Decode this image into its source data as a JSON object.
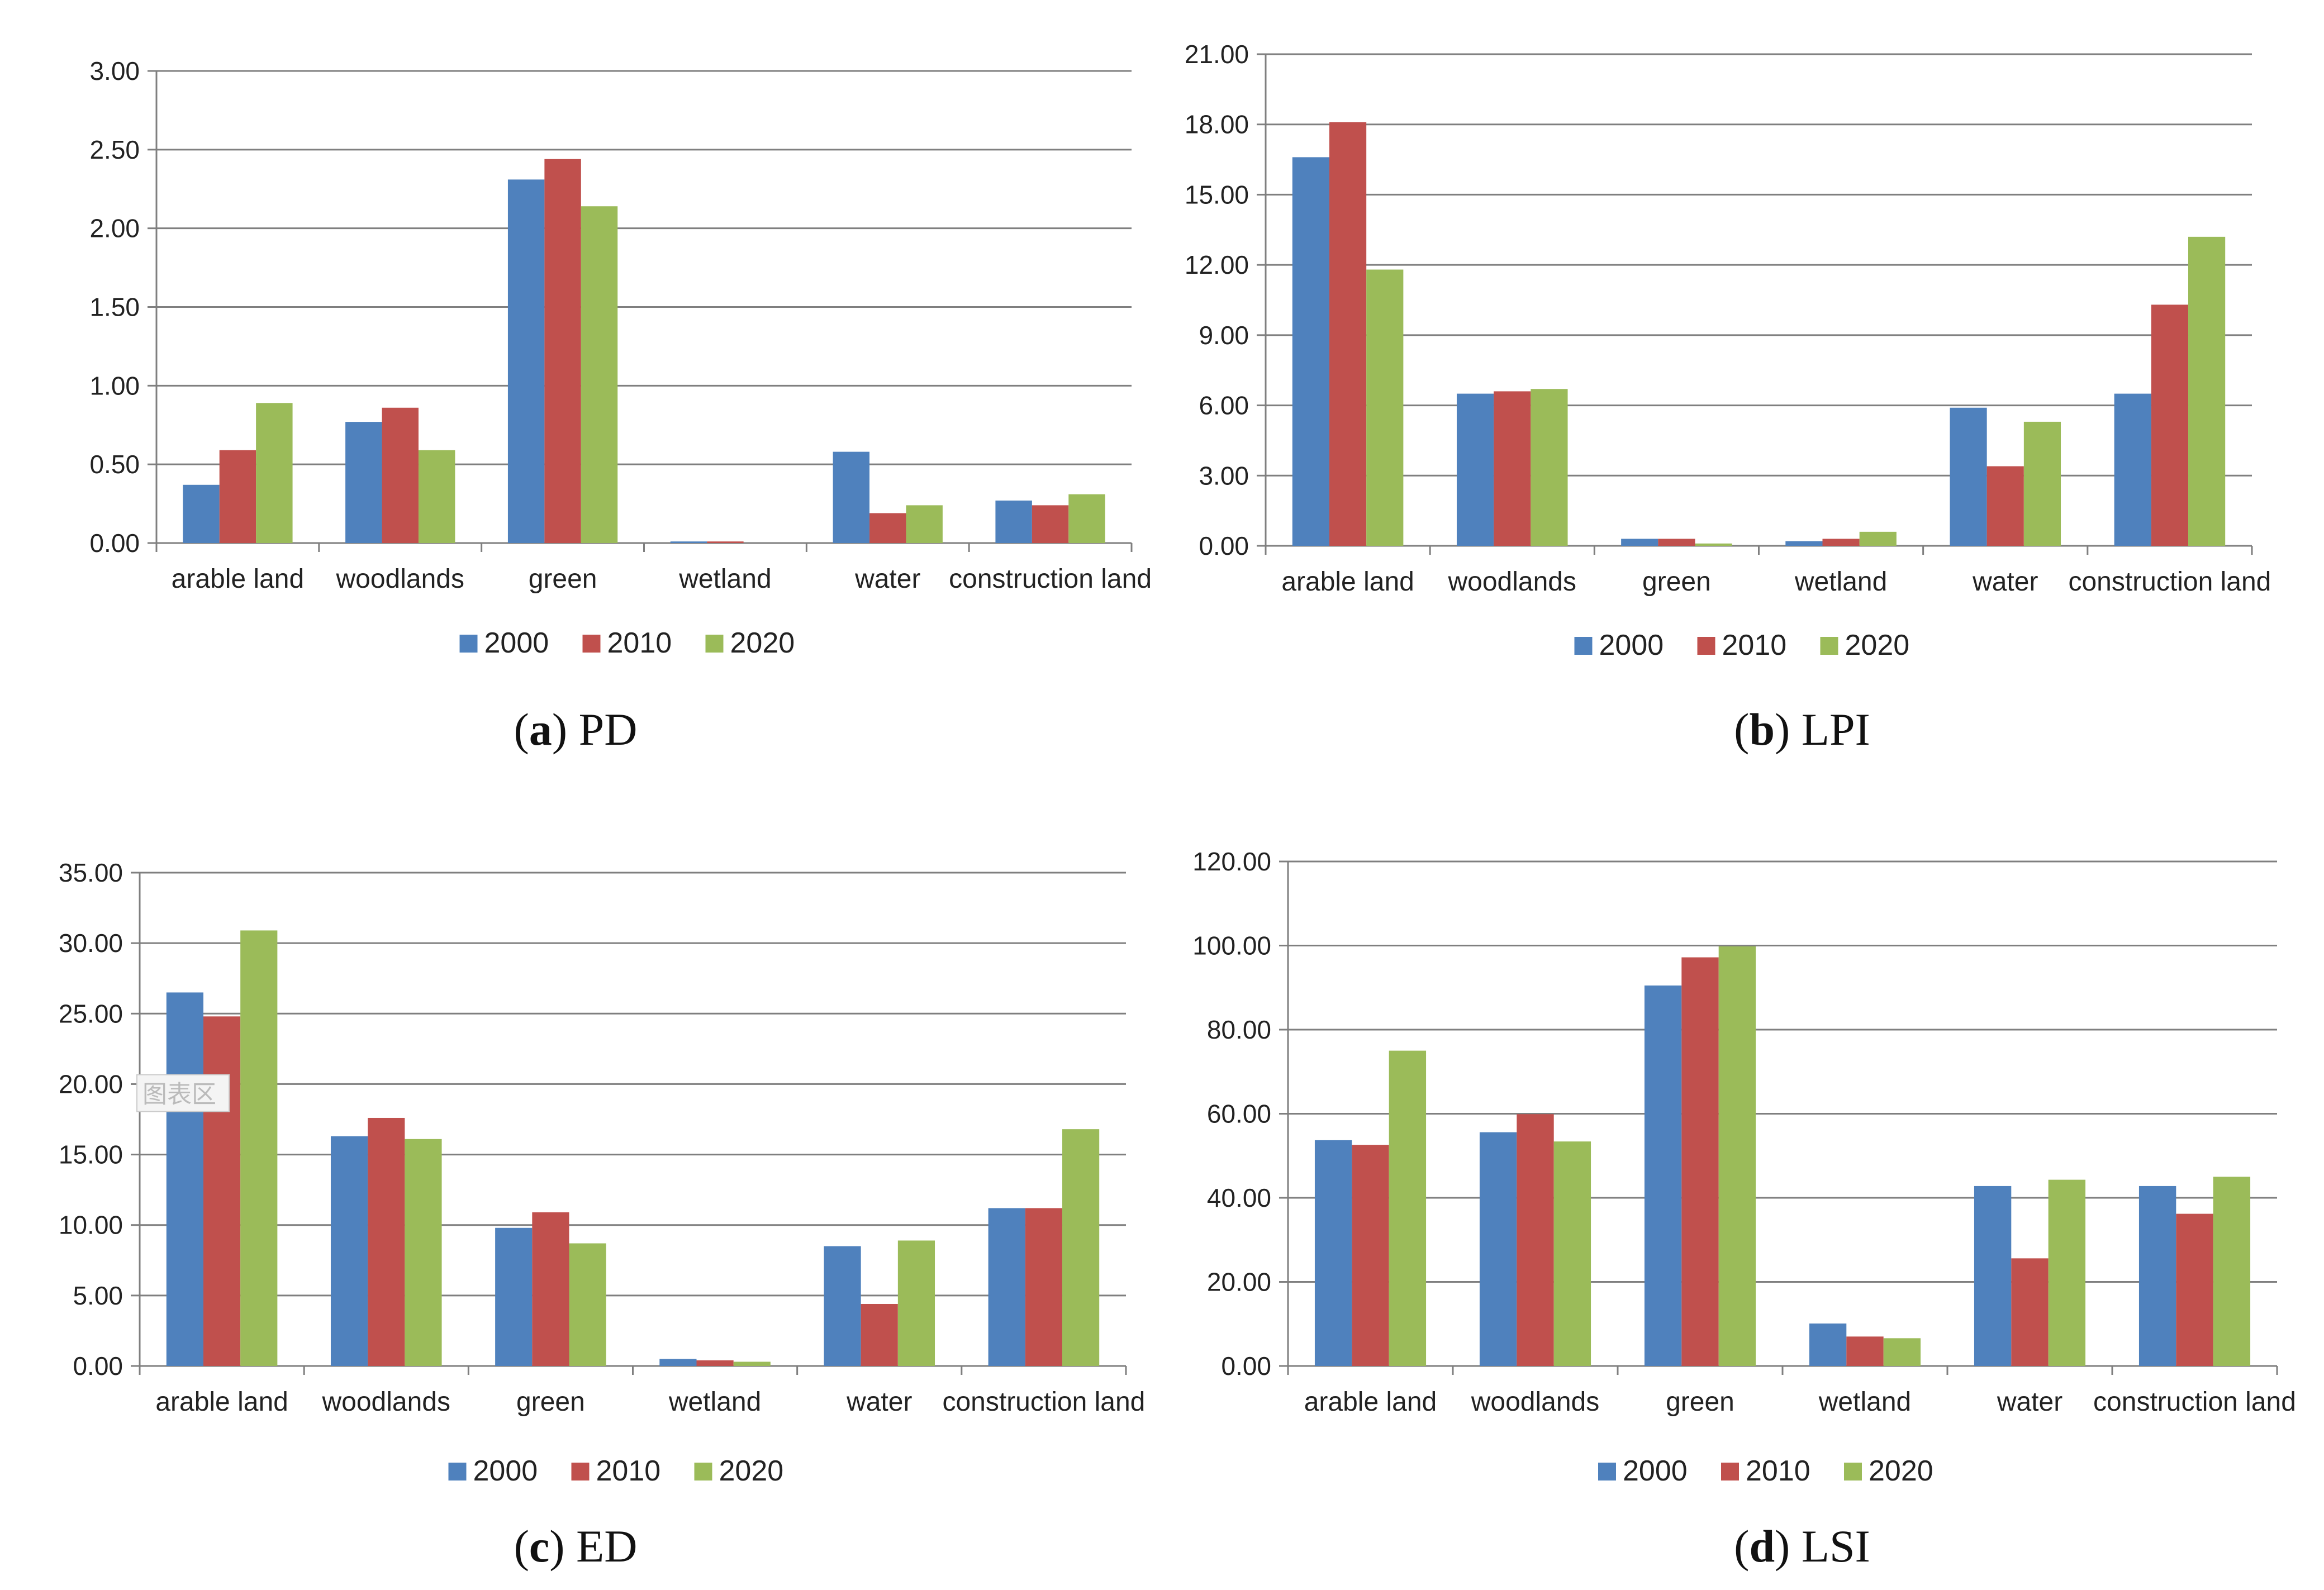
{
  "series_names": [
    "2000",
    "2010",
    "2020"
  ],
  "colors": {
    "s2000": "#4f81bd",
    "s2010": "#c0504d",
    "s2020": "#9bbb59",
    "grid": "#7f7f7f",
    "axis": "#7f7f7f"
  },
  "chart_data": [
    {
      "type": "bar",
      "caption_letter": "a",
      "caption_text": "PD",
      "categories": [
        "arable land",
        "woodlands",
        "green",
        "wetland",
        "water",
        "construction land"
      ],
      "series": [
        {
          "name": "2000",
          "values": [
            0.37,
            0.77,
            2.31,
            0.01,
            0.58,
            0.27
          ]
        },
        {
          "name": "2010",
          "values": [
            0.59,
            0.86,
            2.44,
            0.01,
            0.19,
            0.24
          ]
        },
        {
          "name": "2020",
          "values": [
            0.89,
            0.59,
            2.14,
            0.0,
            0.24,
            0.31
          ]
        }
      ],
      "ylim": [
        0,
        3
      ],
      "yticks": [
        "0.00",
        "0.50",
        "1.00",
        "1.50",
        "2.00",
        "2.50",
        "3.00"
      ],
      "legend": "bottom"
    },
    {
      "type": "bar",
      "caption_letter": "b",
      "caption_text": "LPI",
      "categories": [
        "arable land",
        "woodlands",
        "green",
        "wetland",
        "water",
        "construction land"
      ],
      "series": [
        {
          "name": "2000",
          "values": [
            16.6,
            6.5,
            0.3,
            0.2,
            5.9,
            6.5
          ]
        },
        {
          "name": "2010",
          "values": [
            18.1,
            6.6,
            0.3,
            0.3,
            3.4,
            10.3
          ]
        },
        {
          "name": "2020",
          "values": [
            11.8,
            6.7,
            0.1,
            0.6,
            5.3,
            13.2
          ]
        }
      ],
      "ylim": [
        0,
        21
      ],
      "yticks": [
        "0.00",
        "3.00",
        "6.00",
        "9.00",
        "12.00",
        "15.00",
        "18.00",
        "21.00"
      ],
      "legend": "bottom"
    },
    {
      "type": "bar",
      "caption_letter": "c",
      "caption_text": "ED",
      "categories": [
        "arable land",
        "woodlands",
        "green",
        "wetland",
        "water",
        "construction land"
      ],
      "series": [
        {
          "name": "2000",
          "values": [
            26.5,
            16.3,
            9.8,
            0.5,
            8.5,
            11.2
          ]
        },
        {
          "name": "2010",
          "values": [
            24.8,
            17.6,
            10.9,
            0.4,
            4.4,
            11.2
          ]
        },
        {
          "name": "2020",
          "values": [
            30.9,
            16.1,
            8.7,
            0.3,
            8.9,
            16.8
          ]
        }
      ],
      "ylim": [
        0,
        35
      ],
      "yticks": [
        "0.00",
        "5.00",
        "10.00",
        "15.00",
        "20.00",
        "25.00",
        "30.00",
        "35.00"
      ],
      "legend": "bottom",
      "annotation": "图表区"
    },
    {
      "type": "bar",
      "caption_letter": "d",
      "caption_text": "LSI",
      "categories": [
        "arable land",
        "woodlands",
        "green",
        "wetland",
        "water",
        "construction land"
      ],
      "series": [
        {
          "name": "2000",
          "values": [
            53.7,
            55.6,
            90.5,
            10.1,
            42.8,
            42.8
          ]
        },
        {
          "name": "2010",
          "values": [
            52.6,
            59.9,
            97.2,
            7.0,
            25.6,
            36.2
          ]
        },
        {
          "name": "2020",
          "values": [
            75.0,
            53.4,
            99.8,
            6.6,
            44.3,
            45.0
          ]
        }
      ],
      "ylim": [
        0,
        120
      ],
      "yticks": [
        "0.00",
        "20.00",
        "40.00",
        "60.00",
        "80.00",
        "100.00",
        "120.00"
      ],
      "legend": "bottom"
    }
  ]
}
